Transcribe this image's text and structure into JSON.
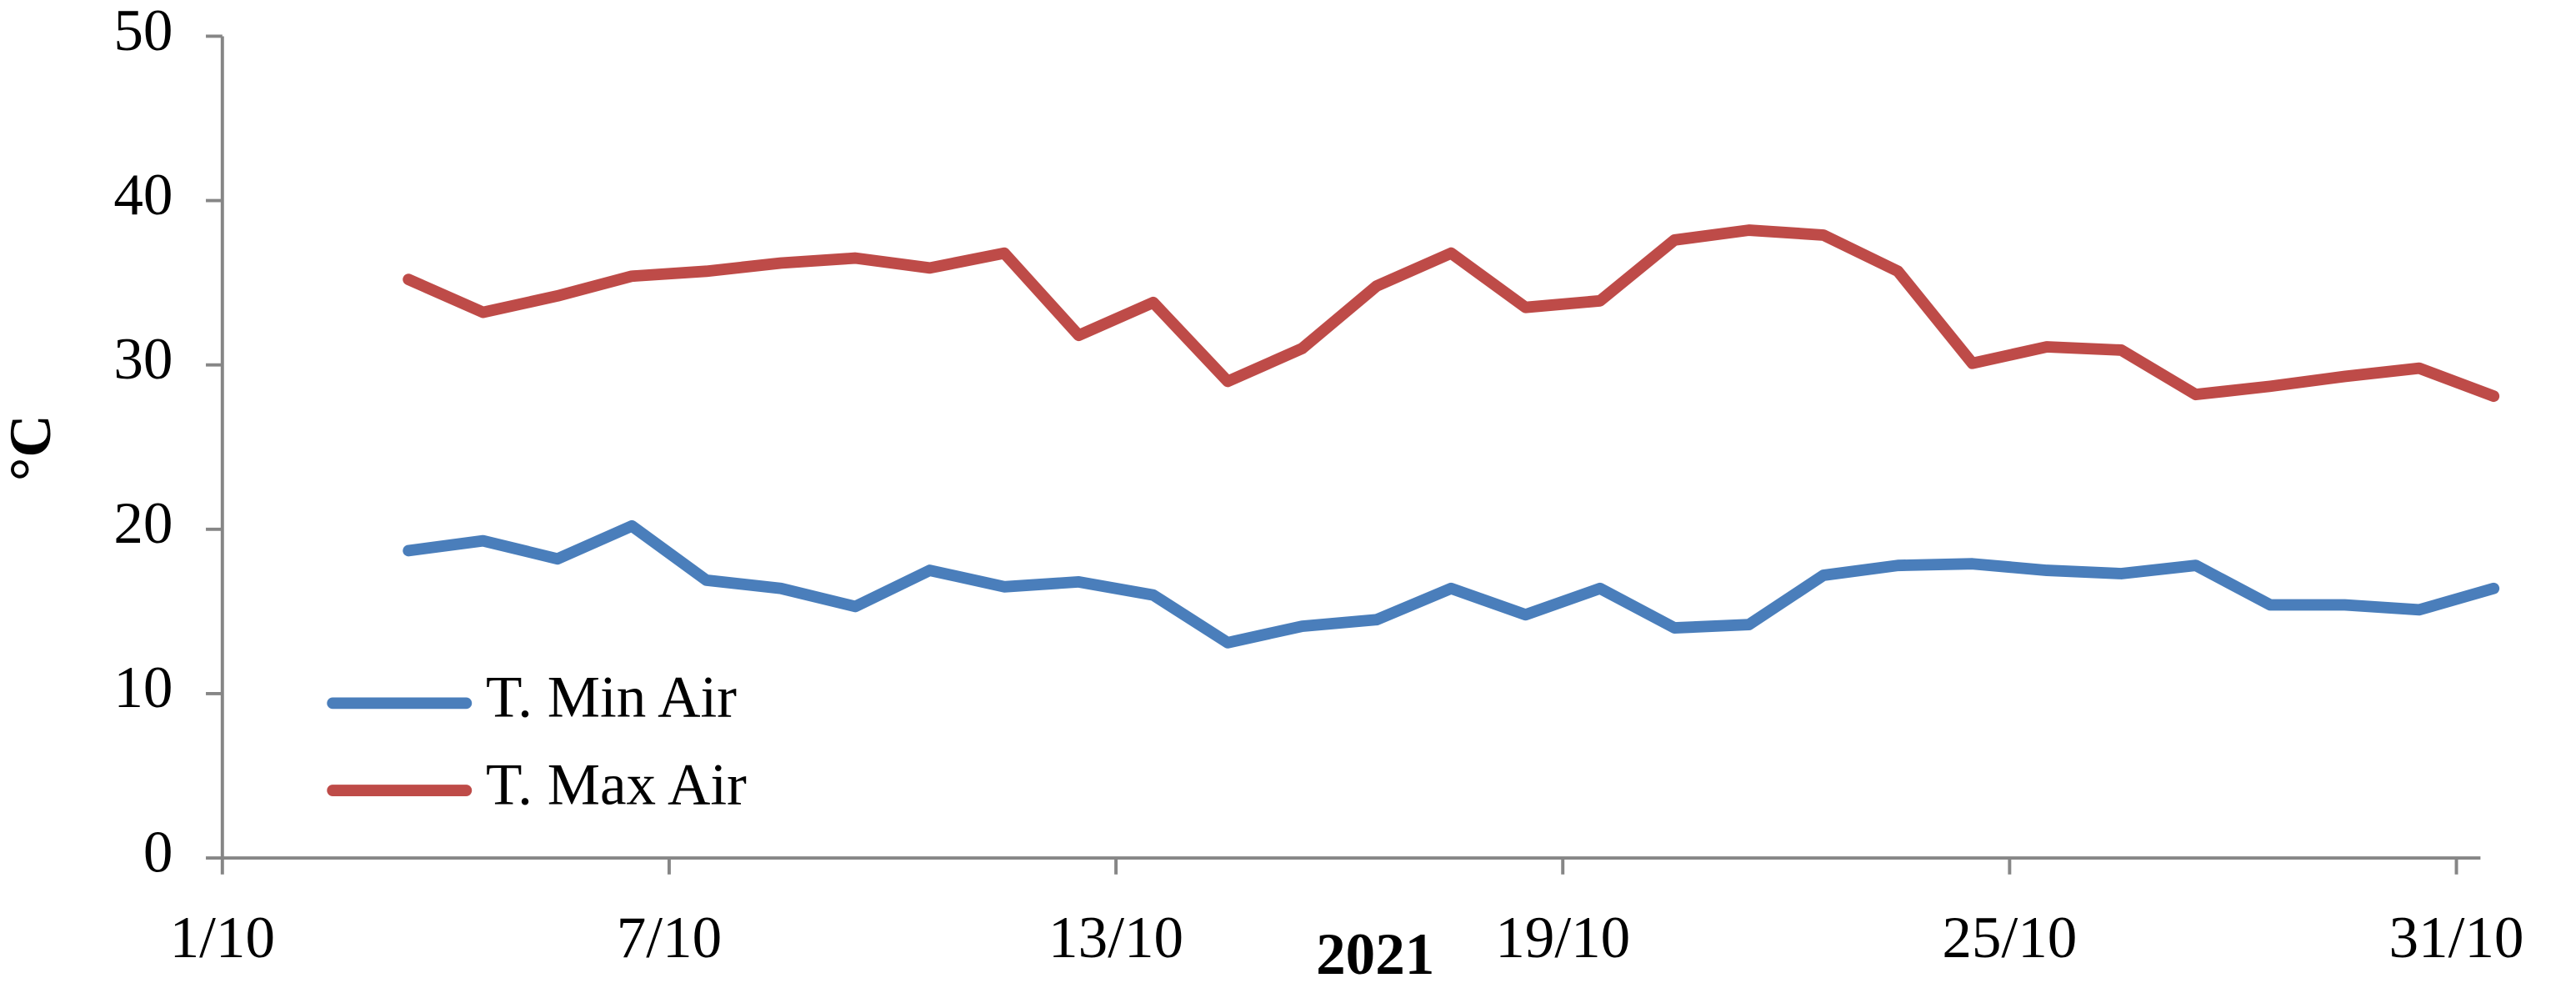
{
  "chart_data": {
    "type": "line",
    "x_label": "2021",
    "y_label": "°C",
    "x": [
      3.5,
      4.5,
      5.5,
      6.5,
      7.5,
      8.5,
      9.5,
      10.5,
      11.5,
      12.5,
      13.5,
      14.5,
      15.5,
      16.5,
      17.5,
      18.5,
      19.5,
      20.5,
      21.5,
      22.5,
      23.5,
      24.5,
      25.5,
      26.5,
      27.5,
      28.5,
      29.5,
      30.5,
      31.5
    ],
    "series": [
      {
        "name": "T. Min Air",
        "color": "#4a7ebb",
        "values": [
          18.7,
          19.3,
          18.2,
          20.2,
          16.9,
          16.4,
          15.3,
          17.5,
          16.5,
          16.8,
          16.0,
          13.1,
          14.1,
          14.5,
          16.4,
          14.8,
          16.4,
          14.0,
          14.2,
          17.2,
          17.8,
          17.9,
          17.5,
          17.3,
          17.8,
          15.4,
          15.4,
          15.1,
          16.4
        ]
      },
      {
        "name": "T. Max Air",
        "color": "#be4b48",
        "values": [
          35.2,
          33.2,
          34.2,
          35.4,
          35.7,
          36.2,
          36.5,
          35.9,
          36.8,
          31.8,
          33.8,
          29.0,
          31.0,
          34.8,
          36.8,
          33.5,
          33.9,
          37.6,
          38.2,
          37.9,
          35.7,
          30.1,
          31.1,
          30.9,
          28.2,
          28.7,
          29.3,
          29.8,
          28.1
        ]
      }
    ],
    "xlim": [
      1,
      31.5
    ],
    "xticks": [
      {
        "value": 1,
        "label": "1/10"
      },
      {
        "value": 7,
        "label": "7/10"
      },
      {
        "value": 13,
        "label": "13/10"
      },
      {
        "value": 19,
        "label": "19/10"
      },
      {
        "value": 25,
        "label": "25/10"
      },
      {
        "value": 31,
        "label": "31/10"
      }
    ],
    "ylim": [
      0,
      50
    ],
    "yticks": [
      0,
      10,
      20,
      30,
      40,
      50
    ],
    "legend": "lower-left"
  }
}
